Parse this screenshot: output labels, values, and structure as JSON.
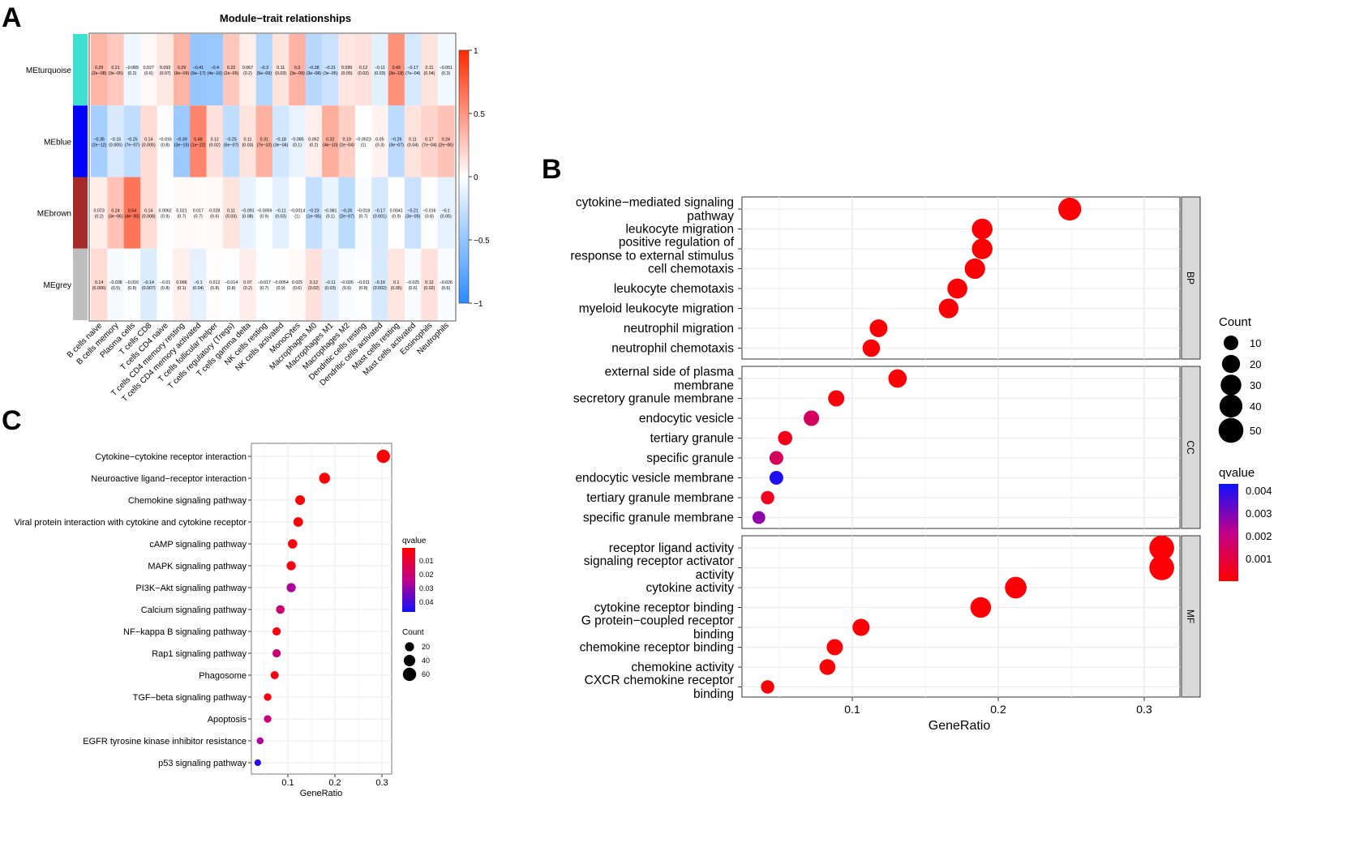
{
  "panel_letters": [
    "A",
    "B",
    "C"
  ],
  "chart_data": [
    {
      "type": "heatmap",
      "title": "Module−trait relationships",
      "rows": [
        "MEturquoise",
        "MEblue",
        "MEbrown",
        "MEgrey"
      ],
      "row_colors": [
        "#40E0D0",
        "#0000FF",
        "#A52A2A",
        "#BEBEBE"
      ],
      "columns": [
        "B cells naive",
        "B cells memory",
        "Plasma cells",
        "T cells CD8",
        "T cells CD4 naive",
        "T cells CD4 memory resting",
        "T cells CD4 memory activated",
        "T cells follicular helper",
        "T cells regulatory (Tregs)",
        "T cells gamma delta",
        "NK cells resting",
        "NK cells activated",
        "Monocytes",
        "Macrophages M0",
        "Macrophages M1",
        "Macrophages M2",
        "Dendritic cells resting",
        "Dendritic cells activated",
        "Mast cells resting",
        "Mast cells activated",
        "Eosinophils",
        "Neutrophils"
      ],
      "values": [
        [
          0.29,
          0.21,
          -0.065,
          0.027,
          0.093,
          0.29,
          -0.41,
          -0.4,
          0.22,
          0.067,
          -0.3,
          0.11,
          0.3,
          -0.28,
          -0.21,
          0.099,
          0.12,
          -0.11,
          0.43,
          -0.17,
          0.11,
          -0.051
        ],
        [
          -0.35,
          -0.15,
          -0.25,
          0.14,
          -0.016,
          -0.39,
          0.48,
          0.12,
          -0.25,
          0.11,
          0.31,
          -0.18,
          -0.085,
          0.062,
          0.32,
          0.19,
          -0.0023,
          0.05,
          -0.26,
          0.11,
          0.17,
          0.24
        ],
        [
          0.073,
          0.24,
          0.54,
          0.14,
          0.0062,
          0.021,
          0.017,
          0.028,
          0.11,
          -0.091,
          -0.0059,
          -0.11,
          -0.0014,
          -0.23,
          -0.081,
          -0.26,
          -0.018,
          -0.17,
          0.0041,
          -0.21,
          -0.016,
          -0.1
        ],
        [
          0.14,
          -0.038,
          -0.016,
          -0.14,
          -0.01,
          0.066,
          -0.1,
          0.012,
          -0.014,
          0.07,
          -0.017,
          -0.0054,
          0.025,
          0.12,
          -0.11,
          -0.026,
          -0.011,
          -0.16,
          0.1,
          -0.025,
          0.12,
          -0.026
        ]
      ],
      "pvalues": [
        [
          "2e-08",
          "3e-05",
          "0.2",
          "0.6",
          "0.07",
          "9e-09",
          "9e-17",
          "4e-16",
          "2e-05",
          "0.2",
          "5e-09",
          "0.03",
          "3e-09",
          "3e-08",
          "3e-05",
          "0.05",
          "0.02",
          "0.03",
          "3e-18",
          "7e-04",
          "0.04",
          "0.3"
        ],
        [
          "2e-12",
          "0.005",
          "7e-07",
          "0.005",
          "0.8",
          "3e-15",
          "1e-22",
          "0.02",
          "6e-07",
          "0.03",
          "7e-10",
          "3e-04",
          "0.1",
          "0.2",
          "4e-10",
          "2e-04",
          "1",
          "0.3",
          "3e-07",
          "0.04",
          "7e-04",
          "2e-06"
        ],
        [
          "0.2",
          "3e-06",
          "4e-30",
          "0.008",
          "0.9",
          "0.7",
          "0.7",
          "0.6",
          "0.03",
          "0.08",
          "0.9",
          "0.03",
          "1",
          "1e-05",
          "0.1",
          "2e-07",
          "0.7",
          "0.001",
          "0.9",
          "3e-05",
          "0.8",
          "0.05"
        ],
        [
          "0.006",
          "0.5",
          "0.8",
          "0.007",
          "0.8",
          "0.1",
          "0.04",
          "0.8",
          "0.8",
          "0.2",
          "0.7",
          "0.9",
          "0.6",
          "0.02",
          "0.03",
          "0.6",
          "0.8",
          "0.002",
          "0.05",
          "0.6",
          "0.02",
          "0.6"
        ]
      ],
      "colorbar": {
        "range": [
          -1,
          1
        ],
        "ticks": [
          "1",
          "0.5",
          "0",
          "−0.5",
          "−1"
        ],
        "low": "#2B8CFF",
        "mid": "#FFFFFF",
        "high": "#FF2A00"
      }
    },
    {
      "type": "scatter",
      "subtype": "dotplot-faceted",
      "xlabel": "GeneRatio",
      "xticks": [
        "0.1",
        "0.2",
        "0.3"
      ],
      "xlim": [
        0.025,
        0.33
      ],
      "facets": [
        {
          "name": "BP",
          "terms": [
            {
              "label": [
                "cytokine−mediated signaling",
                "pathway"
              ],
              "x": 0.249,
              "count": 40,
              "q": 0.0001
            },
            {
              "label": [
                "leukocyte migration"
              ],
              "x": 0.189,
              "count": 30,
              "q": 0.0001
            },
            {
              "label": [
                "positive regulation of",
                "response to external stimulus"
              ],
              "x": 0.189,
              "count": 30,
              "q": 0.0001
            },
            {
              "label": [
                "cell chemotaxis"
              ],
              "x": 0.184,
              "count": 29,
              "q": 0.0001
            },
            {
              "label": [
                "leukocyte chemotaxis"
              ],
              "x": 0.172,
              "count": 27,
              "q": 0.0001
            },
            {
              "label": [
                "myeloid leukocyte migration"
              ],
              "x": 0.166,
              "count": 26,
              "q": 0.0001
            },
            {
              "label": [
                "neutrophil migration"
              ],
              "x": 0.118,
              "count": 19,
              "q": 0.0001
            },
            {
              "label": [
                "neutrophil chemotaxis"
              ],
              "x": 0.113,
              "count": 18,
              "q": 0.0001
            }
          ]
        },
        {
          "name": "CC",
          "terms": [
            {
              "label": [
                "external side of plasma",
                "membrane"
              ],
              "x": 0.131,
              "count": 21,
              "q": 0.0001
            },
            {
              "label": [
                "secretory granule membrane"
              ],
              "x": 0.089,
              "count": 14,
              "q": 0.0002
            },
            {
              "label": [
                "endocytic vesicle"
              ],
              "x": 0.072,
              "count": 12,
              "q": 0.0015
            },
            {
              "label": [
                "tertiary granule"
              ],
              "x": 0.054,
              "count": 9,
              "q": 0.0004
            },
            {
              "label": [
                "specific granule"
              ],
              "x": 0.048,
              "count": 8,
              "q": 0.0014
            },
            {
              "label": [
                "endocytic vesicle membrane"
              ],
              "x": 0.048,
              "count": 8,
              "q": 0.0042
            },
            {
              "label": [
                "tertiary granule membrane"
              ],
              "x": 0.042,
              "count": 7,
              "q": 0.0005
            },
            {
              "label": [
                "specific granule membrane"
              ],
              "x": 0.036,
              "count": 6,
              "q": 0.0028
            }
          ]
        },
        {
          "name": "MF",
          "terms": [
            {
              "label": [
                "receptor ligand activity"
              ],
              "x": 0.312,
              "count": 50,
              "q": 0.0001
            },
            {
              "label": [
                "signaling receptor activator",
                "activity"
              ],
              "x": 0.312,
              "count": 50,
              "q": 0.0001
            },
            {
              "label": [
                "cytokine activity"
              ],
              "x": 0.212,
              "count": 34,
              "q": 0.0001
            },
            {
              "label": [
                "cytokine receptor binding"
              ],
              "x": 0.188,
              "count": 30,
              "q": 0.0001
            },
            {
              "label": [
                "G protein−coupled receptor",
                "binding"
              ],
              "x": 0.106,
              "count": 17,
              "q": 0.0001
            },
            {
              "label": [
                "chemokine receptor binding"
              ],
              "x": 0.088,
              "count": 14,
              "q": 0.0001
            },
            {
              "label": [
                "chemokine activity"
              ],
              "x": 0.083,
              "count": 13,
              "q": 0.0001
            },
            {
              "label": [
                "CXCR chemokine receptor",
                "binding"
              ],
              "x": 0.042,
              "count": 7,
              "q": 0.0001
            }
          ]
        }
      ],
      "legend_count": {
        "title": "Count",
        "values": [
          10,
          20,
          30,
          40,
          50
        ]
      },
      "legend_q": {
        "title": "qvalue",
        "ticks": [
          "0.004",
          "0.003",
          "0.002",
          "0.001"
        ],
        "range": [
          0,
          0.0044
        ]
      }
    },
    {
      "type": "scatter",
      "subtype": "dotplot",
      "xlabel": "GeneRatio",
      "xticks": [
        "0.1",
        "0.2",
        "0.3"
      ],
      "xlim": [
        0.022,
        0.32
      ],
      "terms": [
        {
          "label": "Cytokine−cytokine receptor interaction",
          "x": 0.303,
          "count": 60,
          "q": 0.0005
        },
        {
          "label": "Neuroactive ligand−receptor interaction",
          "x": 0.178,
          "count": 35,
          "q": 0.001
        },
        {
          "label": "Chemokine signaling pathway",
          "x": 0.126,
          "count": 25,
          "q": 0.001
        },
        {
          "label": "Viral protein interaction with cytokine and cytokine receptor",
          "x": 0.122,
          "count": 24,
          "q": 0.001
        },
        {
          "label": "cAMP signaling pathway",
          "x": 0.11,
          "count": 22,
          "q": 0.002
        },
        {
          "label": "MAPK signaling pathway",
          "x": 0.107,
          "count": 21,
          "q": 0.003
        },
        {
          "label": "PI3K−Akt signaling pathway",
          "x": 0.107,
          "count": 21,
          "q": 0.025
        },
        {
          "label": "Calcium signaling pathway",
          "x": 0.084,
          "count": 17,
          "q": 0.018
        },
        {
          "label": "NF−kappa B signaling pathway",
          "x": 0.076,
          "count": 15,
          "q": 0.002
        },
        {
          "label": "Rap1 signaling pathway",
          "x": 0.076,
          "count": 15,
          "q": 0.019
        },
        {
          "label": "Phagosome",
          "x": 0.072,
          "count": 14,
          "q": 0.003
        },
        {
          "label": "TGF−beta signaling pathway",
          "x": 0.057,
          "count": 11,
          "q": 0.002
        },
        {
          "label": "Apoptosis",
          "x": 0.057,
          "count": 11,
          "q": 0.02
        },
        {
          "label": "EGFR tyrosine kinase inhibitor resistance",
          "x": 0.041,
          "count": 8,
          "q": 0.025
        },
        {
          "label": "p53 signaling pathway",
          "x": 0.036,
          "count": 7,
          "q": 0.042
        }
      ],
      "legend_q": {
        "title": "qvalue",
        "ticks": [
          "0.01",
          "0.02",
          "0.03",
          "0.04"
        ],
        "range": [
          0,
          0.045
        ]
      },
      "legend_count": {
        "title": "Count",
        "values": [
          20,
          40,
          60
        ]
      }
    }
  ]
}
